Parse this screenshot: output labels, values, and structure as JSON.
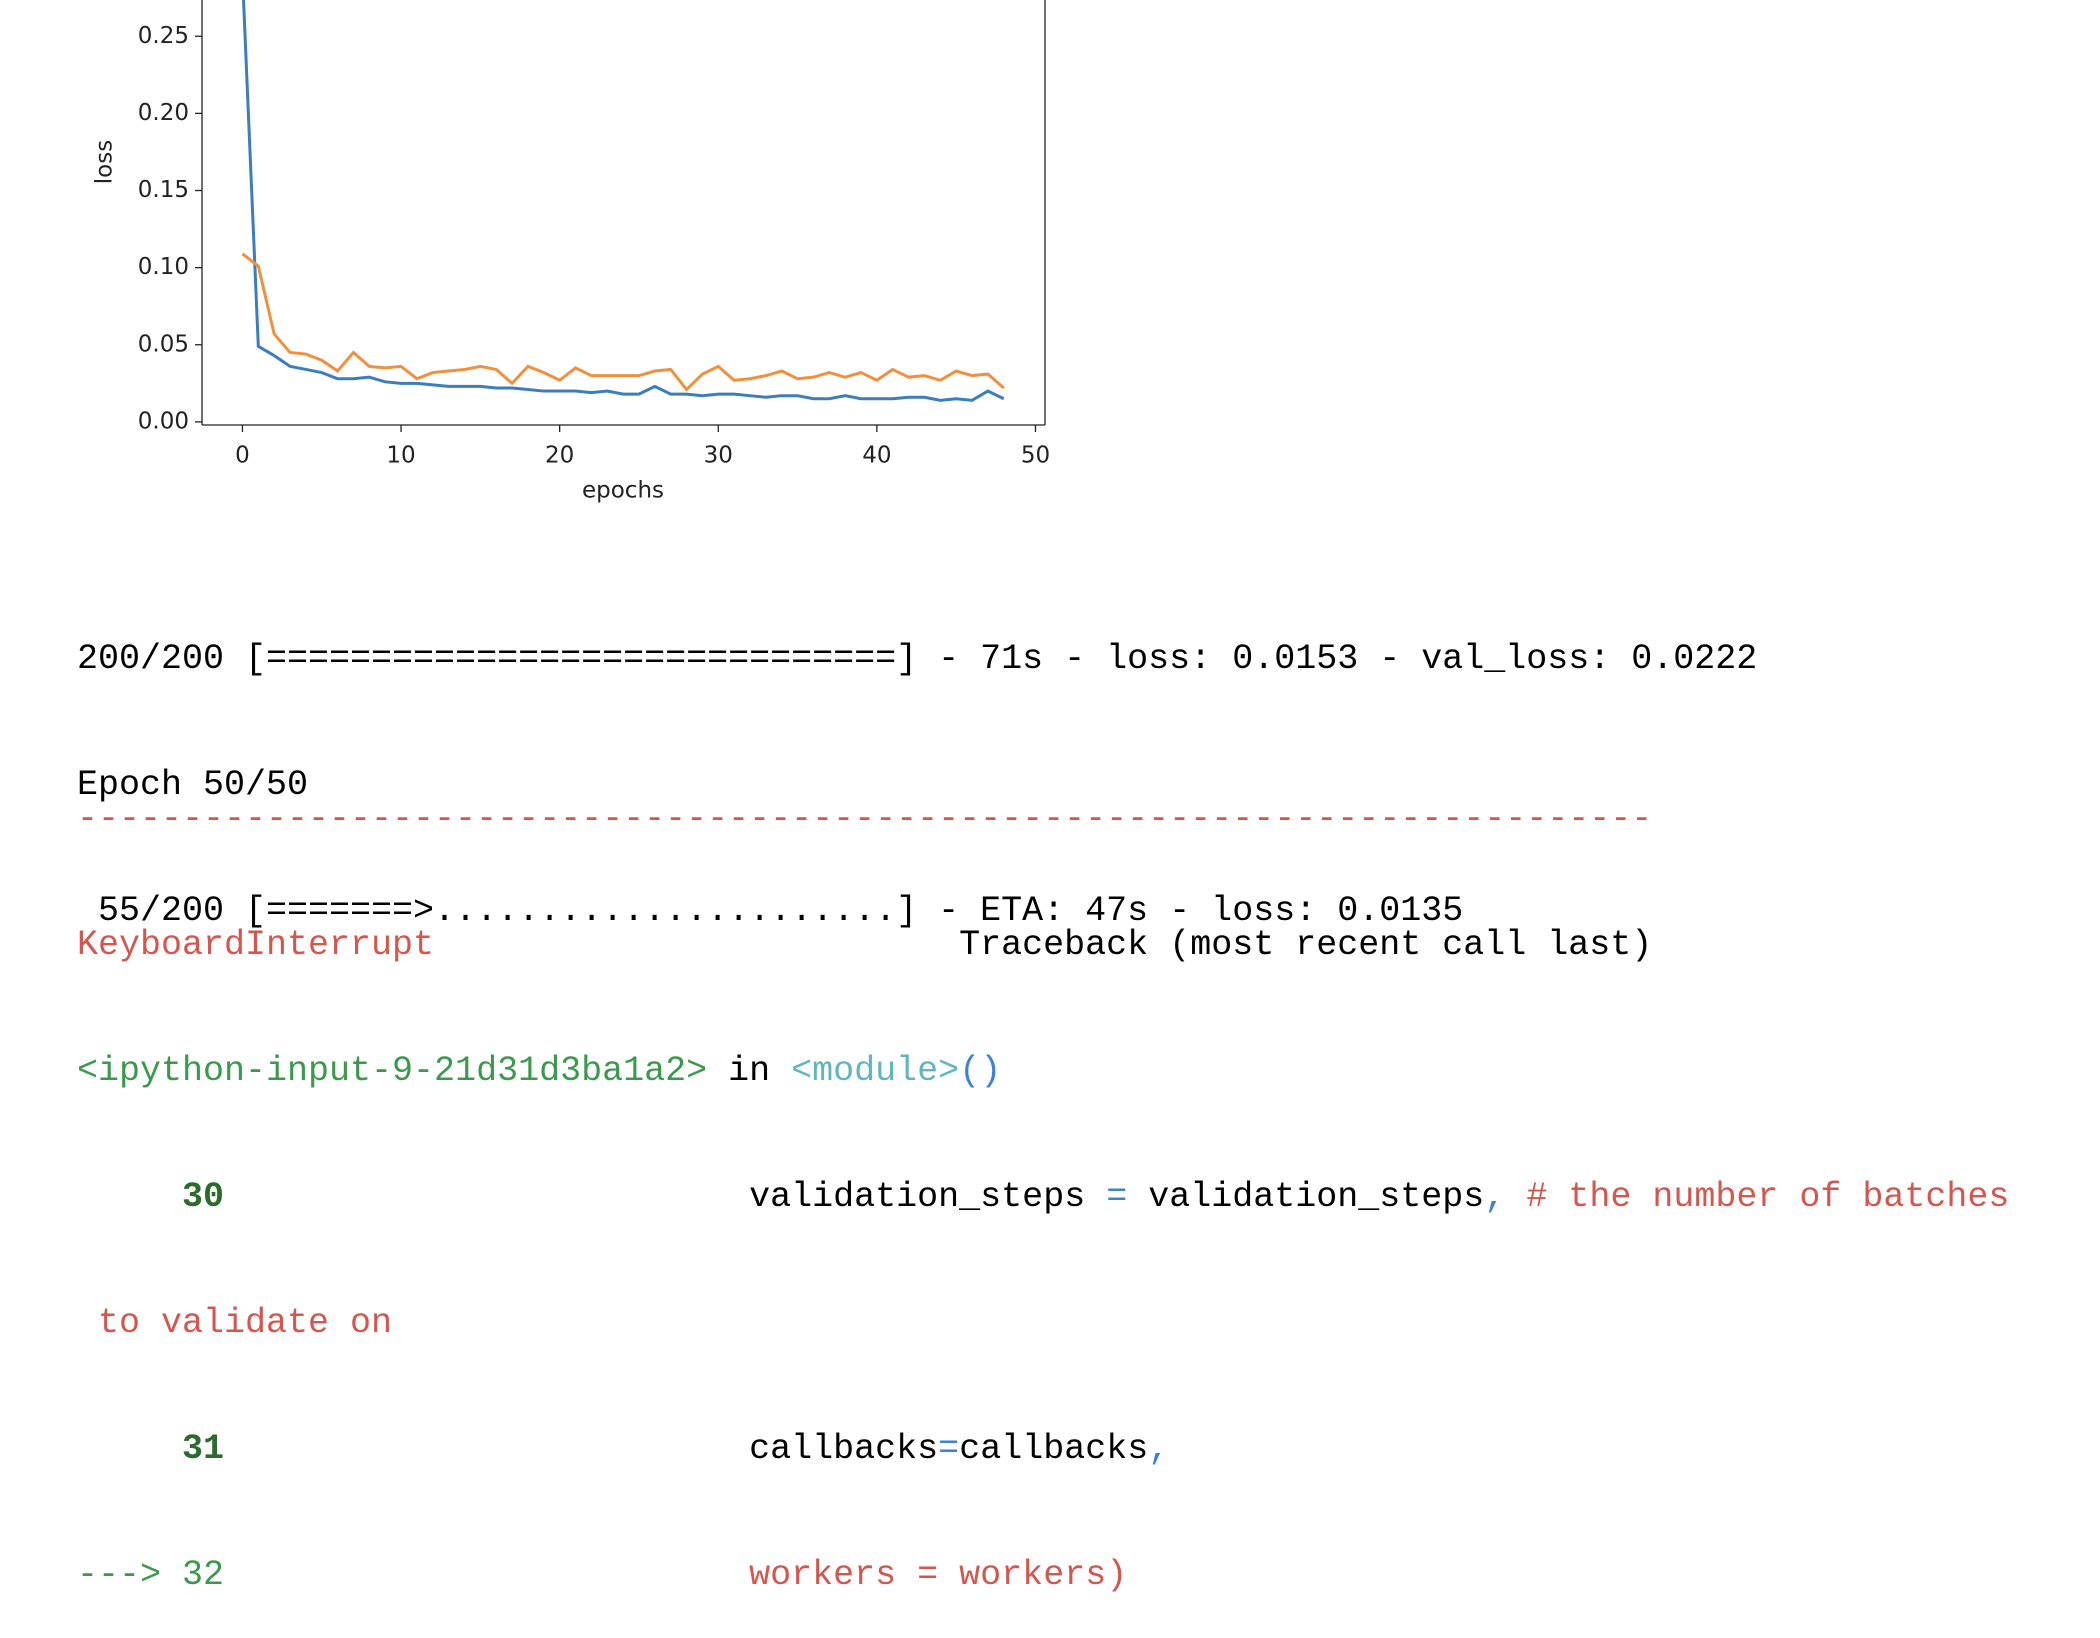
{
  "chart_data": {
    "type": "line",
    "xlabel": "epochs",
    "ylabel": "loss",
    "x": [
      0,
      1,
      2,
      3,
      4,
      5,
      6,
      7,
      8,
      9,
      10,
      11,
      12,
      13,
      14,
      15,
      16,
      17,
      18,
      19,
      20,
      21,
      22,
      23,
      24,
      25,
      26,
      27,
      28,
      29,
      30,
      31,
      32,
      33,
      34,
      35,
      36,
      37,
      38,
      39,
      40,
      41,
      42,
      43,
      44,
      45,
      46,
      47,
      48
    ],
    "series": [
      {
        "color": "#3b7dbd",
        "values": [
          0.29,
          0.049,
          0.043,
          0.036,
          0.034,
          0.032,
          0.028,
          0.028,
          0.029,
          0.026,
          0.025,
          0.025,
          0.024,
          0.023,
          0.023,
          0.023,
          0.022,
          0.022,
          0.021,
          0.02,
          0.02,
          0.02,
          0.019,
          0.02,
          0.018,
          0.018,
          0.023,
          0.018,
          0.018,
          0.017,
          0.018,
          0.018,
          0.017,
          0.016,
          0.017,
          0.017,
          0.015,
          0.015,
          0.017,
          0.015,
          0.015,
          0.015,
          0.016,
          0.016,
          0.014,
          0.015,
          0.014,
          0.02,
          0.015
        ]
      },
      {
        "color": "#f0903f",
        "values": [
          0.109,
          0.101,
          0.057,
          0.045,
          0.044,
          0.04,
          0.033,
          0.045,
          0.036,
          0.035,
          0.036,
          0.028,
          0.032,
          0.033,
          0.034,
          0.036,
          0.034,
          0.025,
          0.036,
          0.032,
          0.027,
          0.035,
          0.03,
          0.03,
          0.03,
          0.03,
          0.033,
          0.034,
          0.021,
          0.031,
          0.036,
          0.027,
          0.028,
          0.03,
          0.033,
          0.028,
          0.029,
          0.032,
          0.029,
          0.032,
          0.027,
          0.034,
          0.029,
          0.03,
          0.027,
          0.033,
          0.03,
          0.031,
          0.022
        ]
      }
    ],
    "xlim": [
      -2.55,
      50.6
    ],
    "ylim": [
      -0.002,
      0.2735
    ],
    "xticks": [
      0,
      10,
      20,
      30,
      40,
      50
    ],
    "yticks": [
      {
        "value": 0,
        "label": "0.00"
      },
      {
        "value": 0.05,
        "label": "0.05"
      },
      {
        "value": 0.1,
        "label": "0.10"
      },
      {
        "value": 0.15,
        "label": "0.15"
      },
      {
        "value": 0.2,
        "label": "0.20"
      },
      {
        "value": 0.25,
        "label": "0.25"
      }
    ]
  },
  "log": [
    "200/200 [==============================] - 71s - loss: 0.0153 - val_loss: 0.0222",
    "Epoch 50/50",
    " 55/200 [=======>......................] - ETA: 47s - loss: 0.0135"
  ],
  "traceback": {
    "separator": "---------------------------------------------------------------------------",
    "exception": "KeyboardInterrupt",
    "header": "Traceback (most recent call last)",
    "location": {
      "file": "<ipython-input-9-21d31d3ba1a2>",
      "keyword": "in",
      "module": "<module>",
      "call": "()"
    },
    "lines": [
      {
        "number": 30,
        "tokens": [
          "validation_steps",
          "=",
          "validation_steps",
          ",",
          "# the number of batches",
          "to validate on"
        ]
      },
      {
        "number": 31,
        "tokens": [
          "callbacks",
          "=",
          "callbacks",
          ","
        ]
      },
      {
        "arrow": "--->",
        "number": 32,
        "tokens": [
          "workers = workers)"
        ]
      }
    ]
  }
}
